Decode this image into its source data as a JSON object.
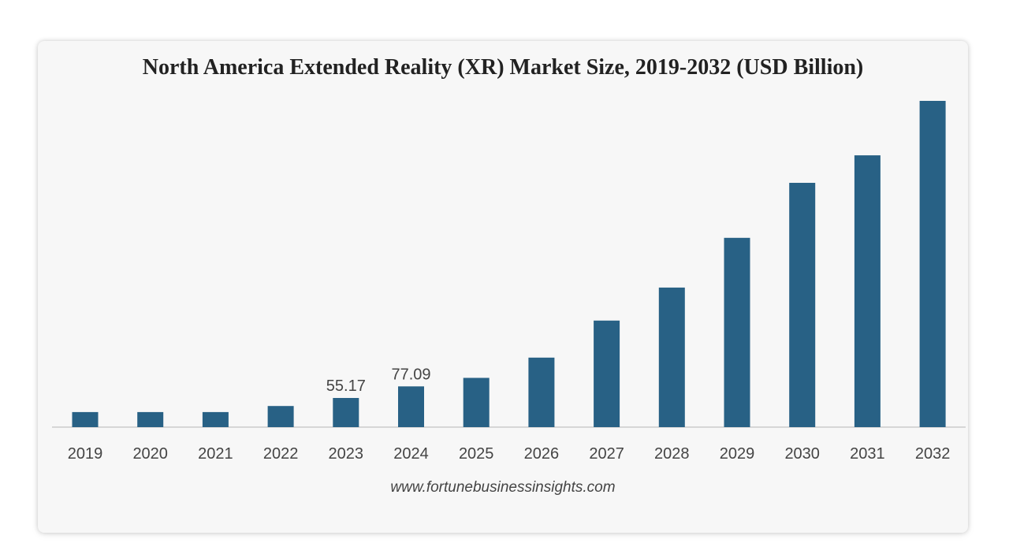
{
  "chart_data": {
    "type": "bar",
    "title": "North America Extended Reality (XR) Market Size, 2019-2032 (USD Billion)",
    "xlabel": "",
    "ylabel": "",
    "categories": [
      "2019",
      "2020",
      "2021",
      "2022",
      "2023",
      "2024",
      "2025",
      "2026",
      "2027",
      "2028",
      "2029",
      "2030",
      "2031",
      "2032"
    ],
    "values": [
      28.5,
      28.5,
      28.5,
      40.0,
      55.17,
      77.09,
      93.2,
      131.5,
      201.5,
      264.0,
      358.0,
      462.0,
      514.0,
      617.0
    ],
    "data_labels": [
      null,
      null,
      null,
      null,
      "55.17",
      "77.09",
      null,
      null,
      null,
      null,
      null,
      null,
      null,
      null
    ],
    "ylim": [
      0,
      620
    ],
    "grid": false,
    "bar_color": "#286185",
    "axis_color": "#cccccc"
  },
  "source": "www.fortunebusinessinsights.com"
}
